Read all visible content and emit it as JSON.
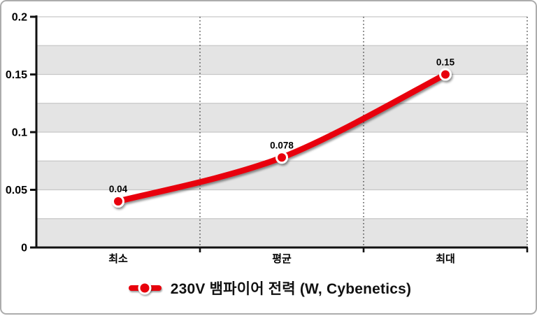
{
  "canvas": {
    "background": "#ffffff",
    "border_color": "#acacac"
  },
  "chart_data": {
    "type": "line",
    "title": "",
    "categories": [
      "최소",
      "평균",
      "최대"
    ],
    "series": [
      {
        "name": "230V 뱀파이어 전력 (W, Cybenetics)",
        "values": [
          0.04,
          0.078,
          0.15
        ],
        "point_labels": [
          "0.04",
          "0.078",
          "0.15"
        ],
        "color": "#e8000b",
        "point_border_color": "#ffffff"
      }
    ],
    "xlabel": "",
    "ylabel": "",
    "ylim": [
      0,
      0.2
    ],
    "ytick_values": [
      0,
      0.05,
      0.1,
      0.15,
      0.2
    ],
    "ytick_labels": [
      "0",
      "0.05",
      "0.1",
      "0.15",
      "0.2"
    ],
    "minor_step": 0.025,
    "grid": "striped horizontal bands with light gridlines every 0.025; dotted vertical lines at category boundaries",
    "legend_position": "bottom",
    "colors": {
      "band_fill": "#e4e4e4",
      "gridline": "#c7c7c7",
      "dotted_line": "#3a3a3a",
      "axis": "#111111",
      "label_text": "#000000"
    }
  },
  "legend": {
    "label": "230V 뱀파이어 전력 (W, Cybenetics)",
    "marker_color": "#e8000b"
  }
}
